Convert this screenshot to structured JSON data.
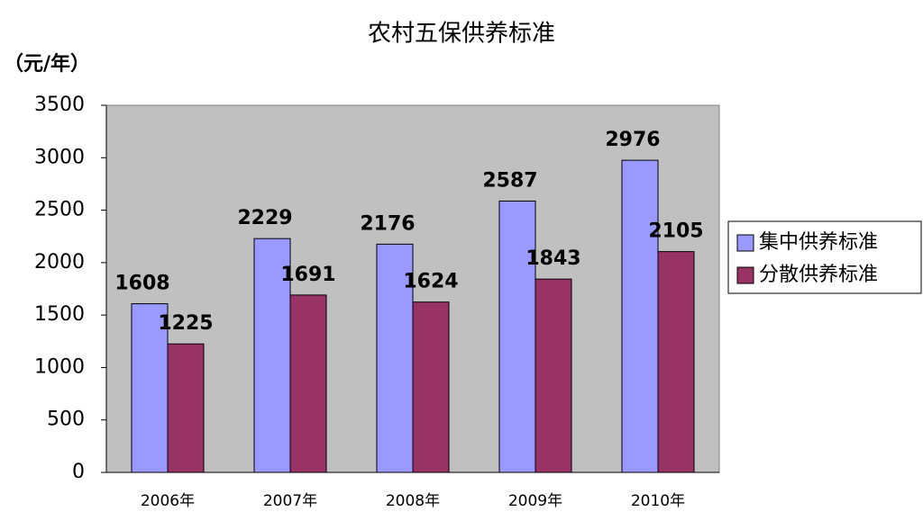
{
  "chart_data": {
    "type": "bar",
    "title": "农村五保供养标准",
    "y_label": "（元/年）",
    "categories": [
      "2006年",
      "2007年",
      "2008年",
      "2009年",
      "2010年"
    ],
    "series": [
      {
        "name": "集中供养标准",
        "color": "#9999ff",
        "values": [
          1608,
          2229,
          2176,
          2587,
          2976
        ]
      },
      {
        "name": "分散供养标准",
        "color": "#993366",
        "values": [
          1225,
          1691,
          1624,
          1843,
          2105
        ]
      }
    ],
    "ylim": [
      0,
      3500
    ],
    "yticks": [
      0,
      500,
      1000,
      1500,
      2000,
      2500,
      3000,
      3500
    ],
    "legend": "right"
  }
}
